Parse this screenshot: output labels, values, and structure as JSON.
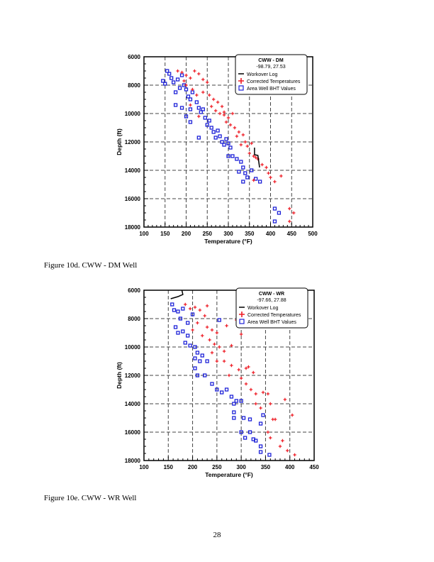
{
  "captions": [
    "Figure 10d.  CWW - DM Well",
    "Figure 10e.  CWW - WR Well"
  ],
  "page_number": "28",
  "colors": {
    "corrected": "#ee1c25",
    "bht": "#1e22d8",
    "workover": "#000000"
  },
  "chart_data": [
    {
      "type": "scatter",
      "legend_title": "CWW - DM",
      "legend_subtitle": "-98.79, 27.53",
      "legend_placement": "top-right",
      "xlabel": "Temperature (°F)",
      "ylabel": "Depth (ft)",
      "xlim": [
        100,
        500
      ],
      "ylim": [
        6000,
        18000
      ],
      "y_inverted": true,
      "grid": true,
      "x_ticks": [
        "100",
        "150",
        "200",
        "250",
        "300",
        "350",
        "400",
        "450",
        "500"
      ],
      "y_ticks": [
        "6000",
        "8000",
        "10000",
        "12000",
        "14000",
        "16000",
        "18000"
      ],
      "series": [
        {
          "name": "Workover Log",
          "kind": "line",
          "points": [
            [
              362,
              12400
            ],
            [
              362,
              12900
            ],
            [
              370,
              12950
            ],
            [
              374,
              13800
            ]
          ]
        },
        {
          "name": "Corrected Temperatures",
          "kind": "plus",
          "points": [
            [
              180,
              7000
            ],
            [
              190,
              7100
            ],
            [
              200,
              7300
            ],
            [
              210,
              7500
            ],
            [
              220,
              7000
            ],
            [
              230,
              7200
            ],
            [
              240,
              7600
            ],
            [
              250,
              7800
            ],
            [
              200,
              8000
            ],
            [
              215,
              8300
            ],
            [
              225,
              8700
            ],
            [
              240,
              8500
            ],
            [
              255,
              8700
            ],
            [
              265,
              9000
            ],
            [
              275,
              9200
            ],
            [
              285,
              9500
            ],
            [
              270,
              9800
            ],
            [
              280,
              10000
            ],
            [
              290,
              10100
            ],
            [
              300,
              10300
            ],
            [
              310,
              10000
            ],
            [
              295,
              10600
            ],
            [
              305,
              10800
            ],
            [
              315,
              11000
            ],
            [
              325,
              11300
            ],
            [
              320,
              11600
            ],
            [
              335,
              11500
            ],
            [
              340,
              12000
            ],
            [
              345,
              12300
            ],
            [
              355,
              12100
            ],
            [
              350,
              12800
            ],
            [
              360,
              13000
            ],
            [
              370,
              13200
            ],
            [
              380,
              13600
            ],
            [
              390,
              13800
            ],
            [
              395,
              14200
            ],
            [
              400,
              14500
            ],
            [
              410,
              14800
            ],
            [
              425,
              14400
            ],
            [
              360,
              14700
            ],
            [
              445,
              16700
            ],
            [
              455,
              17000
            ],
            [
              445,
              17600
            ],
            [
              230,
              10200
            ],
            [
              210,
              9400
            ],
            [
              195,
              7700
            ],
            [
              260,
              9500
            ],
            [
              290,
              9900
            ],
            [
              330,
              12200
            ],
            [
              365,
              13100
            ]
          ]
        },
        {
          "name": "Area Well BHT Values",
          "kind": "square",
          "points": [
            [
              155,
              7000
            ],
            [
              160,
              7200
            ],
            [
              165,
              7500
            ],
            [
              170,
              7800
            ],
            [
              175,
              8500
            ],
            [
              180,
              7600
            ],
            [
              185,
              8200
            ],
            [
              190,
              7300
            ],
            [
              195,
              8000
            ],
            [
              200,
              8300
            ],
            [
              205,
              8800
            ],
            [
              210,
              9000
            ],
            [
              175,
              9400
            ],
            [
              190,
              9600
            ],
            [
              210,
              9700
            ],
            [
              200,
              10200
            ],
            [
              210,
              10600
            ],
            [
              230,
              11700
            ],
            [
              215,
              8500
            ],
            [
              225,
              9200
            ],
            [
              230,
              9600
            ],
            [
              235,
              9900
            ],
            [
              240,
              9700
            ],
            [
              245,
              10300
            ],
            [
              250,
              10800
            ],
            [
              255,
              10500
            ],
            [
              260,
              11000
            ],
            [
              265,
              11300
            ],
            [
              270,
              11700
            ],
            [
              275,
              11200
            ],
            [
              280,
              11600
            ],
            [
              285,
              12000
            ],
            [
              290,
              12200
            ],
            [
              295,
              11800
            ],
            [
              300,
              12100
            ],
            [
              305,
              12400
            ],
            [
              300,
              13000
            ],
            [
              310,
              13000
            ],
            [
              320,
              13200
            ],
            [
              330,
              13400
            ],
            [
              325,
              14100
            ],
            [
              335,
              13800
            ],
            [
              340,
              14200
            ],
            [
              345,
              14500
            ],
            [
              335,
              14800
            ],
            [
              355,
              14000
            ],
            [
              365,
              14600
            ],
            [
              375,
              14800
            ],
            [
              410,
              16700
            ],
            [
              420,
              17000
            ],
            [
              410,
              17600
            ],
            [
              145,
              7700
            ],
            [
              150,
              7900
            ]
          ]
        }
      ]
    },
    {
      "type": "scatter",
      "legend_title": "CWW - WR",
      "legend_subtitle": "-97.66, 27.88",
      "legend_placement": "top-right",
      "xlabel": "Temperature (°F)",
      "ylabel": "Depth (ft)",
      "xlim": [
        100,
        450
      ],
      "ylim": [
        6000,
        18000
      ],
      "y_inverted": true,
      "grid": true,
      "x_ticks": [
        "100",
        "150",
        "200",
        "250",
        "300",
        "350",
        "400",
        "450"
      ],
      "y_ticks": [
        "6000",
        "8000",
        "10000",
        "12000",
        "14000",
        "16000",
        "18000"
      ],
      "series": [
        {
          "name": "Workover Log",
          "kind": "line",
          "points": [
            [
              155,
              6600
            ],
            [
              170,
              6450
            ],
            [
              180,
              6300
            ],
            [
              178,
              6000
            ]
          ]
        },
        {
          "name": "Corrected Temperatures",
          "kind": "plus",
          "points": [
            [
              185,
              7000
            ],
            [
              195,
              7300
            ],
            [
              205,
              7200
            ],
            [
              215,
              7400
            ],
            [
              230,
              7100
            ],
            [
              225,
              7800
            ],
            [
              210,
              8300
            ],
            [
              230,
              8600
            ],
            [
              240,
              8800
            ],
            [
              250,
              9000
            ],
            [
              220,
              9200
            ],
            [
              235,
              9500
            ],
            [
              245,
              9800
            ],
            [
              255,
              10000
            ],
            [
              265,
              10300
            ],
            [
              280,
              9900
            ],
            [
              300,
              9100
            ],
            [
              290,
              8100
            ],
            [
              270,
              8500
            ],
            [
              265,
              11000
            ],
            [
              280,
              11300
            ],
            [
              295,
              11600
            ],
            [
              310,
              11500
            ],
            [
              325,
              11800
            ],
            [
              300,
              12200
            ],
            [
              310,
              12600
            ],
            [
              320,
              13000
            ],
            [
              330,
              13300
            ],
            [
              345,
              13200
            ],
            [
              355,
              13300
            ],
            [
              330,
              14000
            ],
            [
              340,
              14300
            ],
            [
              360,
              14000
            ],
            [
              390,
              13700
            ],
            [
              405,
              14800
            ],
            [
              365,
              15100
            ],
            [
              370,
              15100
            ],
            [
              355,
              16000
            ],
            [
              360,
              16400
            ],
            [
              385,
              16600
            ],
            [
              380,
              17000
            ],
            [
              395,
              17300
            ],
            [
              410,
              17600
            ],
            [
              315,
              11400
            ],
            [
              250,
              11000
            ],
            [
              200,
              8800
            ],
            [
              240,
              10400
            ],
            [
              275,
              12000
            ]
          ]
        },
        {
          "name": "Area Well BHT Values",
          "kind": "square",
          "points": [
            [
              158,
              7000
            ],
            [
              162,
              7400
            ],
            [
              170,
              7500
            ],
            [
              175,
              8000
            ],
            [
              165,
              8600
            ],
            [
              170,
              9000
            ],
            [
              180,
              8900
            ],
            [
              190,
              9200
            ],
            [
              185,
              9700
            ],
            [
              195,
              9900
            ],
            [
              205,
              10000
            ],
            [
              210,
              10400
            ],
            [
              205,
              10800
            ],
            [
              215,
              11000
            ],
            [
              205,
              11500
            ],
            [
              210,
              12000
            ],
            [
              225,
              12000
            ],
            [
              240,
              12600
            ],
            [
              250,
              13000
            ],
            [
              260,
              13200
            ],
            [
              270,
              13000
            ],
            [
              280,
              13500
            ],
            [
              290,
              13800
            ],
            [
              285,
              14000
            ],
            [
              300,
              13800
            ],
            [
              285,
              14600
            ],
            [
              285,
              15000
            ],
            [
              305,
              15000
            ],
            [
              318,
              15100
            ],
            [
              345,
              14800
            ],
            [
              340,
              15400
            ],
            [
              300,
              16000
            ],
            [
              318,
              16000
            ],
            [
              308,
              16400
            ],
            [
              325,
              16500
            ],
            [
              330,
              16600
            ],
            [
              340,
              17000
            ],
            [
              340,
              17400
            ],
            [
              358,
              17600
            ],
            [
              255,
              8100
            ],
            [
              230,
              11000
            ],
            [
              200,
              7700
            ],
            [
              180,
              7300
            ],
            [
              190,
              8300
            ],
            [
              220,
              10600
            ]
          ]
        }
      ]
    }
  ]
}
